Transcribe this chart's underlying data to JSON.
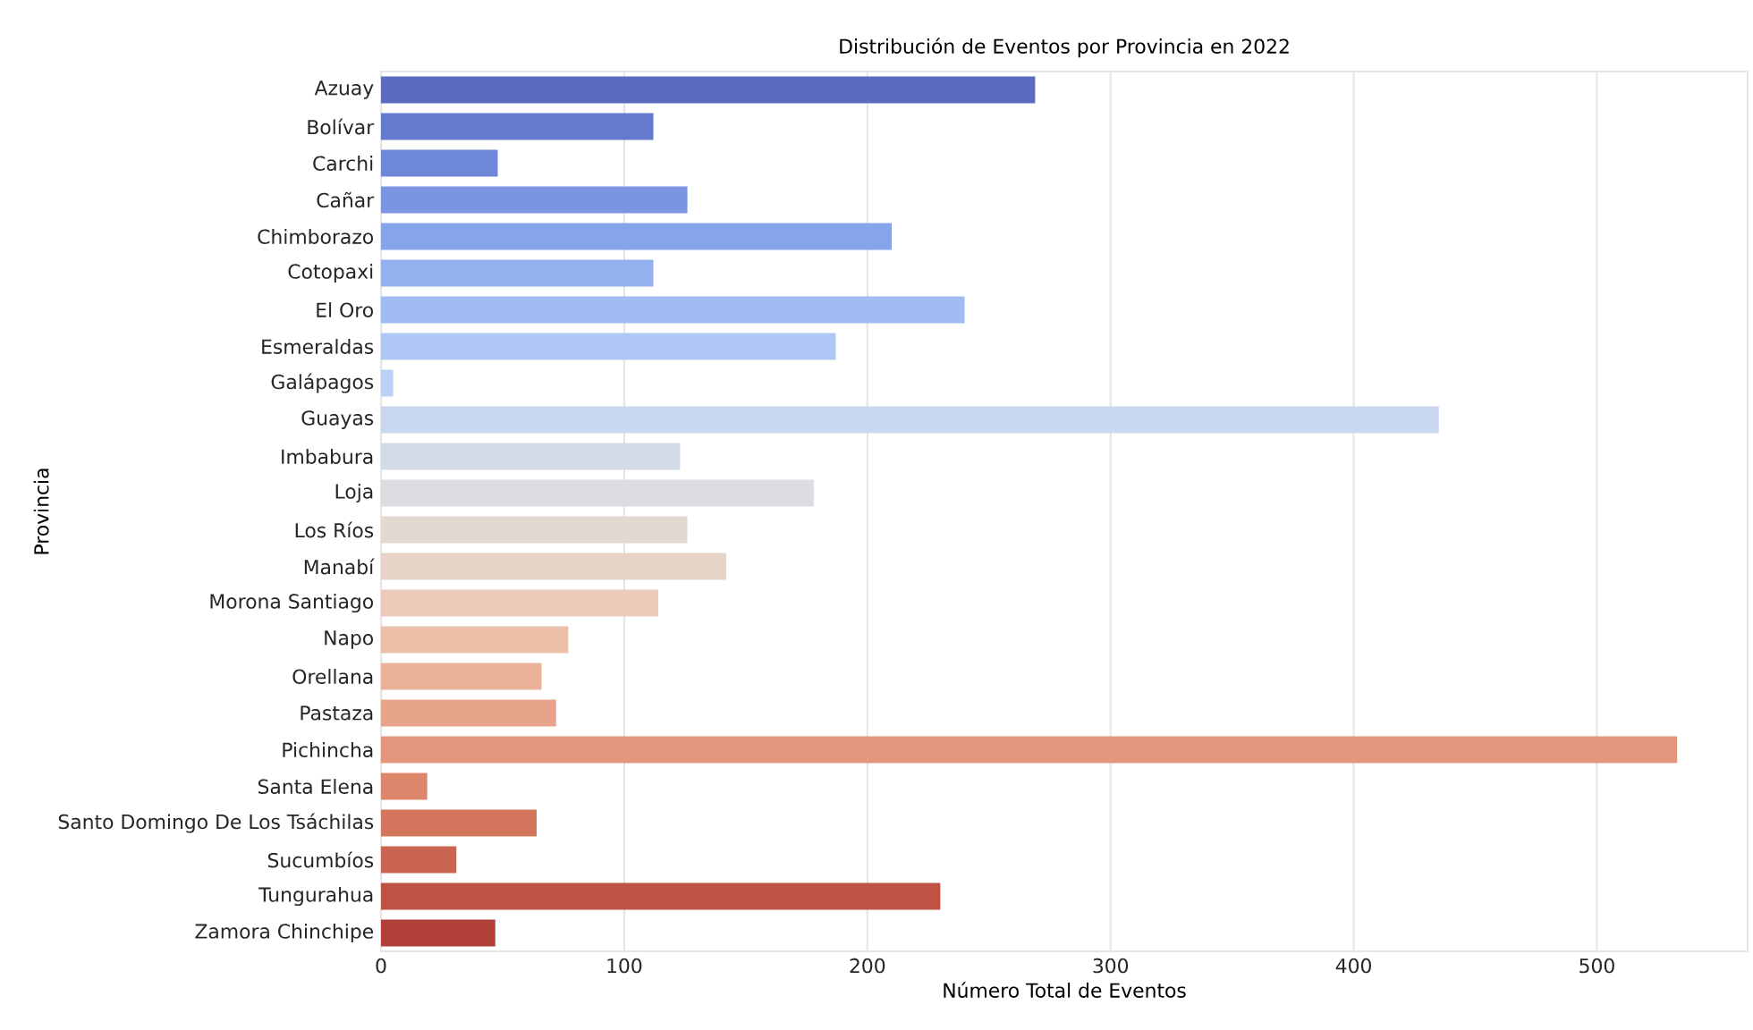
{
  "chart_data": {
    "type": "bar",
    "orientation": "horizontal",
    "title": "Distribución de Eventos por Provincia en 2022",
    "xlabel": "Número Total de Eventos",
    "ylabel": "Provincia",
    "categories": [
      "Azuay",
      "Bolívar",
      "Carchi",
      "Cañar",
      "Chimborazo",
      "Cotopaxi",
      "El Oro",
      "Esmeraldas",
      "Galápagos",
      "Guayas",
      "Imbabura",
      "Loja",
      "Los Ríos",
      "Manabí",
      "Morona Santiago",
      "Napo",
      "Orellana",
      "Pastaza",
      "Pichincha",
      "Santa Elena",
      "Santo Domingo De Los Tsáchilas",
      "Sucumbíos",
      "Tungurahua",
      "Zamora Chinchipe"
    ],
    "values": [
      269,
      112,
      48,
      126,
      210,
      112,
      240,
      187,
      5,
      435,
      123,
      178,
      126,
      142,
      114,
      77,
      66,
      72,
      533,
      19,
      64,
      31,
      230,
      47
    ],
    "colors": [
      "#5b6bc0",
      "#6579cf",
      "#6f87d9",
      "#7b95e2",
      "#87a3ea",
      "#94b0ef",
      "#a1bcf3",
      "#afc7f5",
      "#bcd1f5",
      "#c9d7f0",
      "#d3dbe7",
      "#dcdde0",
      "#e3d9d3",
      "#e8d3c8",
      "#ebcab9",
      "#ecbfa9",
      "#ebb29a",
      "#e8a48a",
      "#e3967b",
      "#dc866c",
      "#d4765e",
      "#ca6551",
      "#be5345",
      "#b2403a"
    ],
    "xlim": [
      0,
      562
    ],
    "xticks": [
      0,
      100,
      200,
      300,
      400,
      500
    ],
    "grid": "x"
  }
}
